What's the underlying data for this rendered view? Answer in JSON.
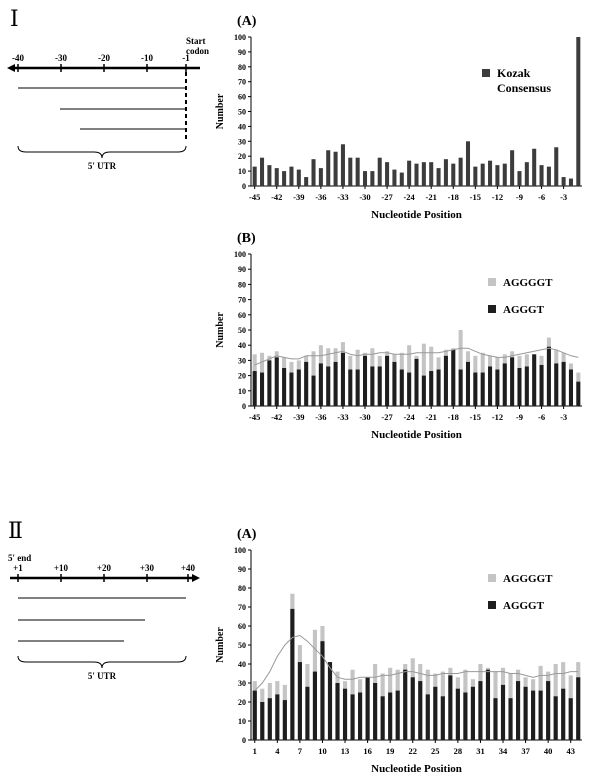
{
  "sections": {
    "one": {
      "roman": "Ⅰ",
      "start_codon": [
        "Start",
        "codon"
      ],
      "ruler_ticks": [
        "-40",
        "-30",
        "-20",
        "-10",
        "-1"
      ],
      "utr_label": "5′ UTR"
    },
    "two": {
      "roman": "Ⅱ",
      "five_end": "5′ end",
      "ruler_ticks": [
        "+1",
        "+10",
        "+20",
        "+30",
        "+40"
      ],
      "utr_label": "5′ UTR"
    }
  },
  "chart_data": [
    {
      "id": "I-A",
      "panel_label": "(A)",
      "type": "bar",
      "ylabel": "Number",
      "xlabel": "Nucleotide Position",
      "ylim": [
        0,
        100
      ],
      "yticks": [
        "0",
        "10",
        "20",
        "30",
        "40",
        "50",
        "60",
        "70",
        "80",
        "90",
        "100"
      ],
      "x": [
        -45,
        -44,
        -43,
        -42,
        -41,
        -40,
        -39,
        -38,
        -37,
        -36,
        -35,
        -34,
        -33,
        -32,
        -31,
        -30,
        -29,
        -28,
        -27,
        -26,
        -25,
        -24,
        -23,
        -22,
        -21,
        -20,
        -19,
        -18,
        -17,
        -16,
        -15,
        -14,
        -13,
        -12,
        -11,
        -10,
        -9,
        -8,
        -7,
        -6,
        -5,
        -4,
        -3,
        -2,
        -1
      ],
      "xtick_labels": [
        "-45",
        "-42",
        "-39",
        "-36",
        "-33",
        "-30",
        "-27",
        "-24",
        "-21",
        "-18",
        "-15",
        "-12",
        "-9",
        "-6",
        "-3"
      ],
      "series": [
        {
          "name": "Kozak Consensus",
          "color": "#3c3c3c",
          "values": [
            13,
            19,
            14,
            12,
            10,
            13,
            11,
            6,
            18,
            12,
            24,
            23,
            28,
            19,
            19,
            10,
            10,
            19,
            16,
            11,
            9,
            17,
            15,
            16,
            16,
            12,
            18,
            15,
            19,
            30,
            13,
            15,
            17,
            14,
            15,
            24,
            10,
            16,
            25,
            14,
            13,
            26,
            6,
            5,
            100
          ]
        }
      ],
      "legend": [
        "Kozak",
        "Consensus"
      ]
    },
    {
      "id": "I-B",
      "panel_label": "(B)",
      "type": "bar",
      "ylabel": "Number",
      "xlabel": "Nucleotide Position",
      "ylim": [
        0,
        100
      ],
      "yticks": [
        "0",
        "10",
        "20",
        "30",
        "40",
        "50",
        "60",
        "70",
        "80",
        "90",
        "100"
      ],
      "x": [
        -45,
        -44,
        -43,
        -42,
        -41,
        -40,
        -39,
        -38,
        -37,
        -36,
        -35,
        -34,
        -33,
        -32,
        -31,
        -30,
        -29,
        -28,
        -27,
        -26,
        -25,
        -24,
        -23,
        -22,
        -21,
        -20,
        -19,
        -18,
        -17,
        -16,
        -15,
        -14,
        -13,
        -12,
        -11,
        -10,
        -9,
        -8,
        -7,
        -6,
        -5,
        -4,
        -3,
        -2,
        -1
      ],
      "xtick_labels": [
        "-45",
        "-42",
        "-39",
        "-36",
        "-33",
        "-30",
        "-27",
        "-24",
        "-21",
        "-18",
        "-15",
        "-12",
        "-9",
        "-6",
        "-3"
      ],
      "series": [
        {
          "name": "AGGGGT",
          "color": "#c4c4c4",
          "values": [
            34,
            35,
            33,
            36,
            32,
            29,
            30,
            33,
            36,
            40,
            38,
            38,
            42,
            33,
            37,
            35,
            38,
            33,
            36,
            34,
            35,
            40,
            33,
            41,
            39,
            32,
            37,
            38,
            50,
            36,
            33,
            35,
            33,
            32,
            34,
            36,
            33,
            34,
            34,
            33,
            45,
            37,
            35,
            28,
            22
          ]
        },
        {
          "name": "AGGGT",
          "color": "#1e1e1e",
          "values": [
            23,
            22,
            30,
            32,
            25,
            22,
            24,
            29,
            20,
            28,
            26,
            29,
            35,
            24,
            24,
            33,
            26,
            26,
            33,
            29,
            24,
            22,
            31,
            20,
            23,
            24,
            33,
            37,
            24,
            29,
            22,
            22,
            26,
            24,
            28,
            32,
            25,
            26,
            34,
            27,
            39,
            28,
            29,
            24,
            16
          ]
        }
      ],
      "trend": [
        27,
        29,
        31,
        33,
        32,
        31,
        31,
        33,
        33,
        33,
        34,
        35,
        36,
        34,
        33,
        34,
        34,
        35,
        35,
        34,
        34,
        34,
        35,
        35,
        35,
        35,
        36,
        37,
        38,
        38,
        36,
        34,
        33,
        32,
        32,
        33,
        34,
        35,
        36,
        37,
        38,
        37,
        35,
        33,
        32
      ]
    },
    {
      "id": "II-A",
      "panel_label": "(A)",
      "type": "bar",
      "ylabel": "Number",
      "xlabel": "Nucleotide Position",
      "ylim": [
        0,
        100
      ],
      "yticks": [
        "0",
        "10",
        "20",
        "30",
        "40",
        "50",
        "60",
        "70",
        "80",
        "90",
        "100"
      ],
      "x": [
        1,
        2,
        3,
        4,
        5,
        6,
        7,
        8,
        9,
        10,
        11,
        12,
        13,
        14,
        15,
        16,
        17,
        18,
        19,
        20,
        21,
        22,
        23,
        24,
        25,
        26,
        27,
        28,
        29,
        30,
        31,
        32,
        33,
        34,
        35,
        36,
        37,
        38,
        39,
        40,
        41,
        42,
        43,
        44
      ],
      "xtick_labels": [
        "1",
        "4",
        "7",
        "10",
        "13",
        "16",
        "19",
        "22",
        "25",
        "28",
        "31",
        "34",
        "37",
        "40",
        "43"
      ],
      "series": [
        {
          "name": "AGGGGT",
          "color": "#c4c4c4",
          "values": [
            31,
            27,
            30,
            31,
            29,
            77,
            50,
            40,
            58,
            60,
            41,
            36,
            31,
            37,
            32,
            33,
            40,
            35,
            38,
            37,
            40,
            43,
            40,
            37,
            35,
            36,
            38,
            33,
            37,
            32,
            40,
            38,
            36,
            38,
            35,
            37,
            33,
            32,
            39,
            36,
            40,
            41,
            34,
            41
          ]
        },
        {
          "name": "AGGGT",
          "color": "#1e1e1e",
          "values": [
            26,
            20,
            22,
            24,
            21,
            69,
            41,
            28,
            36,
            52,
            41,
            30,
            27,
            24,
            25,
            33,
            30,
            23,
            25,
            26,
            37,
            33,
            31,
            24,
            28,
            23,
            34,
            27,
            25,
            28,
            31,
            37,
            22,
            29,
            22,
            31,
            28,
            26,
            26,
            31,
            23,
            27,
            22,
            33
          ]
        }
      ],
      "trend": [
        26,
        30,
        36,
        44,
        50,
        54,
        55,
        52,
        48,
        44,
        38,
        33,
        32,
        32,
        33,
        33,
        33,
        34,
        34,
        35,
        36,
        36,
        35,
        34,
        34,
        35,
        35,
        35,
        36,
        36,
        36,
        36,
        36,
        36,
        35,
        35,
        34,
        33,
        34,
        34,
        35,
        35,
        36,
        36
      ]
    }
  ]
}
